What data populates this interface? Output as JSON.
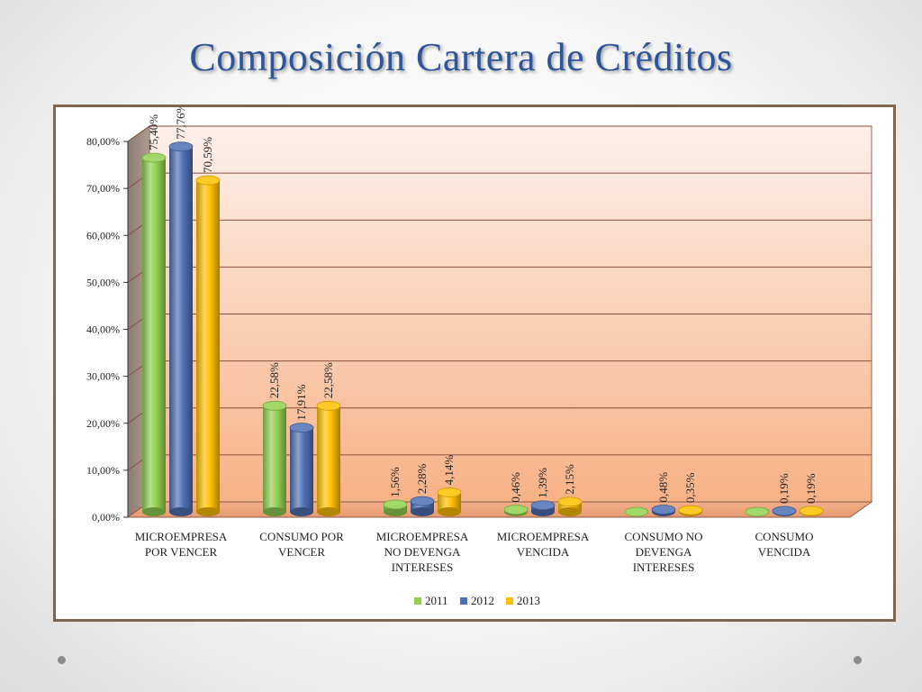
{
  "slide": {
    "title": "Composición Cartera de Créditos"
  },
  "chart_data": {
    "type": "bar",
    "style": "3d-cylinder",
    "title": "",
    "xlabel": "",
    "ylabel": "",
    "ylim": [
      0,
      80
    ],
    "y_ticks": [
      0,
      10,
      20,
      30,
      40,
      50,
      60,
      70,
      80
    ],
    "y_tick_labels": [
      "0,00%",
      "10,00%",
      "20,00%",
      "30,00%",
      "40,00%",
      "50,00%",
      "60,00%",
      "70,00%",
      "80,00%"
    ],
    "grid": true,
    "legend_position": "bottom",
    "categories": [
      [
        "MICROEMPRESA",
        "POR VENCER"
      ],
      [
        "CONSUMO POR",
        "VENCER"
      ],
      [
        "MICROEMPRESA",
        "NO DEVENGA",
        "INTERESES"
      ],
      [
        "MICROEMPRESA",
        "VENCIDA"
      ],
      [
        "CONSUMO NO",
        "DEVENGA",
        "INTERESES"
      ],
      [
        "CONSUMO",
        "VENCIDA"
      ]
    ],
    "series": [
      {
        "name": "2011",
        "color": "#92d050",
        "values": [
          75.4,
          22.58,
          1.56,
          0.46,
          0.0,
          0.0
        ],
        "labels": [
          "75,40%",
          "22,58%",
          "1,56%",
          "0,46%",
          "",
          ""
        ]
      },
      {
        "name": "2012",
        "color": "#4f6fb5",
        "values": [
          77.76,
          17.91,
          2.28,
          1.39,
          0.48,
          0.19
        ],
        "labels": [
          "77,76%",
          "17,91%",
          "2,28%",
          "1,39%",
          "0,48%",
          "0,19%"
        ]
      },
      {
        "name": "2013",
        "color": "#ffc000",
        "values": [
          70.59,
          22.58,
          4.14,
          2.15,
          0.35,
          0.19
        ],
        "labels": [
          "70,59%",
          "22,58%",
          "4,14%",
          "2,15%",
          "0,35%",
          "0,19%"
        ]
      }
    ]
  }
}
